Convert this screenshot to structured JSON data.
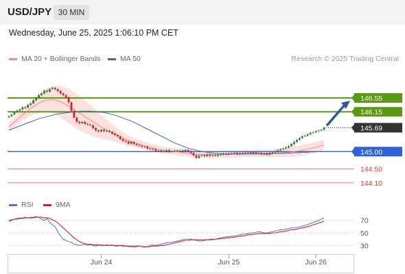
{
  "header": {
    "pair": "USD/JPY",
    "timeframe": "30 MIN"
  },
  "date_line": "Wednesday, June 25, 2025 1:06:10 PM CET",
  "legend": {
    "ma20_label": "MA 20 + Bollinger Bands",
    "ma50_label": "MA 50",
    "credit": "Research © 2025 Trading Central",
    "rsi_label": "RSI",
    "rsi_ma_label": "9MA"
  },
  "colors": {
    "ma20": "#f08a84",
    "bollinger_fill": "#fbd9d6",
    "ma50": "#3d62a6",
    "resistance": "#5a9a12",
    "pivot": "#2d62d9",
    "support": "#f08a84",
    "candle_up": "#2e7d32",
    "candle_down": "#c62828",
    "rsi": "#4a72d6",
    "rsi_ma": "#d42020",
    "last_price_tag": "#333333",
    "arrow": "#2c5aa0"
  },
  "chart_data": [
    {
      "type": "candlestick",
      "title": "USD/JPY",
      "timeframe": "30 MIN",
      "x_ticks": [
        "Jun 24",
        "Jun 25",
        "Jun 26"
      ],
      "ylim": [
        143.8,
        147.4
      ],
      "closes": [
        146.02,
        146.07,
        146.14,
        146.18,
        146.22,
        146.28,
        146.27,
        146.35,
        146.39,
        146.48,
        146.55,
        146.63,
        146.68,
        146.76,
        146.73,
        146.81,
        146.84,
        146.8,
        146.75,
        146.68,
        146.63,
        146.57,
        146.42,
        146.18,
        145.98,
        145.86,
        145.82,
        145.86,
        145.8,
        145.78,
        145.76,
        145.68,
        145.61,
        145.58,
        145.63,
        145.59,
        145.6,
        145.57,
        145.52,
        145.48,
        145.44,
        145.36,
        145.31,
        145.29,
        145.23,
        145.28,
        145.22,
        145.19,
        145.17,
        145.14,
        145.14,
        145.09,
        145.08,
        145.07,
        145.02,
        145.03,
        145.01,
        145.01,
        145.04,
        145.0,
        145.01,
        145.03,
        145.02,
        145.03,
        145.01,
        145.05,
        145.01,
        144.96,
        144.89,
        144.82,
        144.88,
        144.9,
        144.87,
        144.92,
        144.88,
        144.9,
        144.88,
        144.91,
        144.92,
        144.94,
        144.92,
        144.95,
        144.95,
        144.97,
        144.93,
        144.96,
        144.95,
        144.97,
        144.98,
        144.95,
        144.99,
        144.96,
        144.96,
        144.92,
        144.95,
        144.91,
        144.96,
        144.98,
        145.0,
        145.04,
        145.07,
        145.09,
        145.12,
        145.16,
        145.22,
        145.28,
        145.34,
        145.39,
        145.44,
        145.46,
        145.5,
        145.54,
        145.56,
        145.59,
        145.61,
        145.63,
        145.69
      ],
      "series": [
        {
          "name": "MA 20",
          "values": [
            145.72,
            145.78,
            145.85,
            145.92,
            145.99,
            146.06,
            146.12,
            146.18,
            146.24,
            146.3,
            146.35,
            146.4,
            146.44,
            146.47,
            146.49,
            146.5,
            146.5,
            146.49,
            146.47,
            146.44,
            146.4,
            146.36,
            146.31,
            146.26,
            146.21,
            146.16,
            146.11,
            146.06,
            146.01,
            145.96,
            145.91,
            145.86,
            145.81,
            145.76,
            145.71,
            145.67,
            145.63,
            145.59,
            145.55,
            145.51,
            145.47,
            145.43,
            145.39,
            145.35,
            145.32,
            145.29,
            145.26,
            145.23,
            145.21,
            145.19,
            145.17,
            145.15,
            145.13,
            145.11,
            145.09,
            145.07,
            145.05,
            145.04,
            145.03,
            145.02,
            145.01,
            145.0,
            144.99,
            144.98,
            144.97,
            144.96,
            144.95,
            144.94,
            144.93,
            144.92,
            144.92,
            144.92,
            144.91,
            144.91,
            144.91,
            144.91,
            144.91,
            144.91,
            144.91,
            144.92,
            144.92,
            144.92,
            144.92,
            144.93,
            144.93,
            144.93,
            144.93,
            144.94,
            144.94,
            144.94,
            144.94,
            144.95,
            144.95,
            144.95,
            144.95,
            144.95,
            144.95,
            144.95,
            144.96,
            144.96,
            144.97,
            144.97,
            144.98,
            144.98,
            144.99,
            145.0,
            145.01,
            145.02,
            145.04,
            145.05,
            145.07,
            145.09,
            145.11,
            145.13,
            145.15,
            145.17,
            145.19
          ]
        },
        {
          "name": "MA 50",
          "values": [
            145.62,
            145.65,
            145.68,
            145.71,
            145.74,
            145.77,
            145.8,
            145.83,
            145.86,
            145.89,
            145.92,
            145.95,
            145.97,
            145.99,
            146.01,
            146.03,
            146.05,
            146.07,
            146.09,
            146.1,
            146.11,
            146.12,
            146.13,
            146.14,
            146.15,
            146.16,
            146.16,
            146.17,
            146.17,
            146.17,
            146.17,
            146.16,
            146.16,
            146.15,
            146.14,
            146.13,
            146.11,
            146.09,
            146.07,
            146.05,
            146.03,
            146.0,
            145.97,
            145.94,
            145.91,
            145.88,
            145.85,
            145.81,
            145.77,
            145.73,
            145.69,
            145.65,
            145.61,
            145.57,
            145.53,
            145.49,
            145.45,
            145.41,
            145.37,
            145.33,
            145.29,
            145.25,
            145.22,
            145.19,
            145.16,
            145.13,
            145.1,
            145.08,
            145.06,
            145.04,
            145.02,
            145.0,
            144.99,
            144.98,
            144.97,
            144.96,
            144.95,
            144.95,
            144.94,
            144.94,
            144.93,
            144.93,
            144.93,
            144.93,
            144.93,
            144.93,
            144.93,
            144.93,
            144.93,
            144.93,
            144.93,
            144.93,
            144.93,
            144.94,
            144.94,
            144.94,
            144.94,
            144.94,
            144.95,
            144.95,
            144.95,
            144.95,
            144.96,
            144.96,
            144.96,
            144.97,
            144.97,
            144.97,
            144.98,
            144.98,
            144.98,
            144.99,
            144.99,
            144.99,
            145.0,
            145.0,
            145.0
          ]
        },
        {
          "name": "RSI",
          "values": [
            68,
            70,
            72,
            73,
            74,
            74,
            75,
            74,
            75,
            75,
            76,
            75,
            72,
            70,
            73,
            67,
            63,
            60,
            52,
            45,
            40,
            38,
            36,
            35,
            32,
            31,
            30,
            31,
            32,
            30,
            31,
            30,
            29,
            30,
            31,
            30,
            31,
            30,
            31,
            29,
            29,
            30,
            28,
            29,
            28,
            28,
            27,
            28,
            29,
            28,
            27,
            28,
            30,
            31,
            30,
            31,
            32,
            33,
            34,
            35,
            35,
            36,
            37,
            38,
            39,
            40,
            40,
            40,
            39,
            38,
            37,
            37,
            38,
            39,
            40,
            40,
            40,
            41,
            42,
            43,
            44,
            44,
            45,
            45,
            46,
            47,
            48,
            48,
            49,
            50,
            50,
            51,
            52,
            51,
            50,
            50,
            51,
            52,
            53,
            54,
            55,
            55,
            56,
            57,
            58,
            58,
            59,
            59,
            61,
            62,
            63,
            65,
            67,
            68,
            70,
            72,
            74
          ]
        },
        {
          "name": "9MA",
          "values": [
            70,
            71,
            72,
            72,
            73,
            73,
            74,
            74,
            74,
            74,
            75,
            75,
            75,
            74,
            74,
            73,
            71,
            69,
            66,
            62,
            58,
            54,
            50,
            46,
            42,
            39,
            36,
            34,
            33,
            32,
            32,
            31,
            31,
            31,
            30,
            30,
            30,
            30,
            30,
            30,
            30,
            30,
            30,
            29,
            29,
            29,
            29,
            29,
            29,
            28,
            28,
            28,
            28,
            29,
            29,
            29,
            30,
            30,
            31,
            32,
            33,
            34,
            35,
            36,
            37,
            38,
            38,
            39,
            39,
            39,
            39,
            39,
            39,
            39,
            39,
            39,
            40,
            40,
            41,
            41,
            42,
            42,
            43,
            43,
            44,
            45,
            45,
            46,
            47,
            47,
            48,
            48,
            49,
            49,
            49,
            49,
            49,
            50,
            50,
            51,
            52,
            52,
            53,
            54,
            55,
            55,
            56,
            57,
            58,
            59,
            60,
            61,
            63,
            64,
            66,
            67,
            69
          ]
        }
      ],
      "levels": {
        "resistance": [
          146.55,
          146.15
        ],
        "pivot": 145.0,
        "support": [
          144.5,
          144.1
        ],
        "last_price": 145.69
      },
      "level_labels": {
        "r2": "146.55",
        "r1": "146.15",
        "last": "145.69",
        "pivot": "145.00",
        "s1": "144.50",
        "s2": "144.10"
      },
      "rsi_ylim": [
        15,
        85
      ],
      "rsi_ticks": [
        {
          "label": "70",
          "value": 70
        },
        {
          "label": "50",
          "value": 50
        },
        {
          "label": "30",
          "value": 30
        }
      ],
      "legend_placement": "top-left",
      "grid": false
    }
  ]
}
